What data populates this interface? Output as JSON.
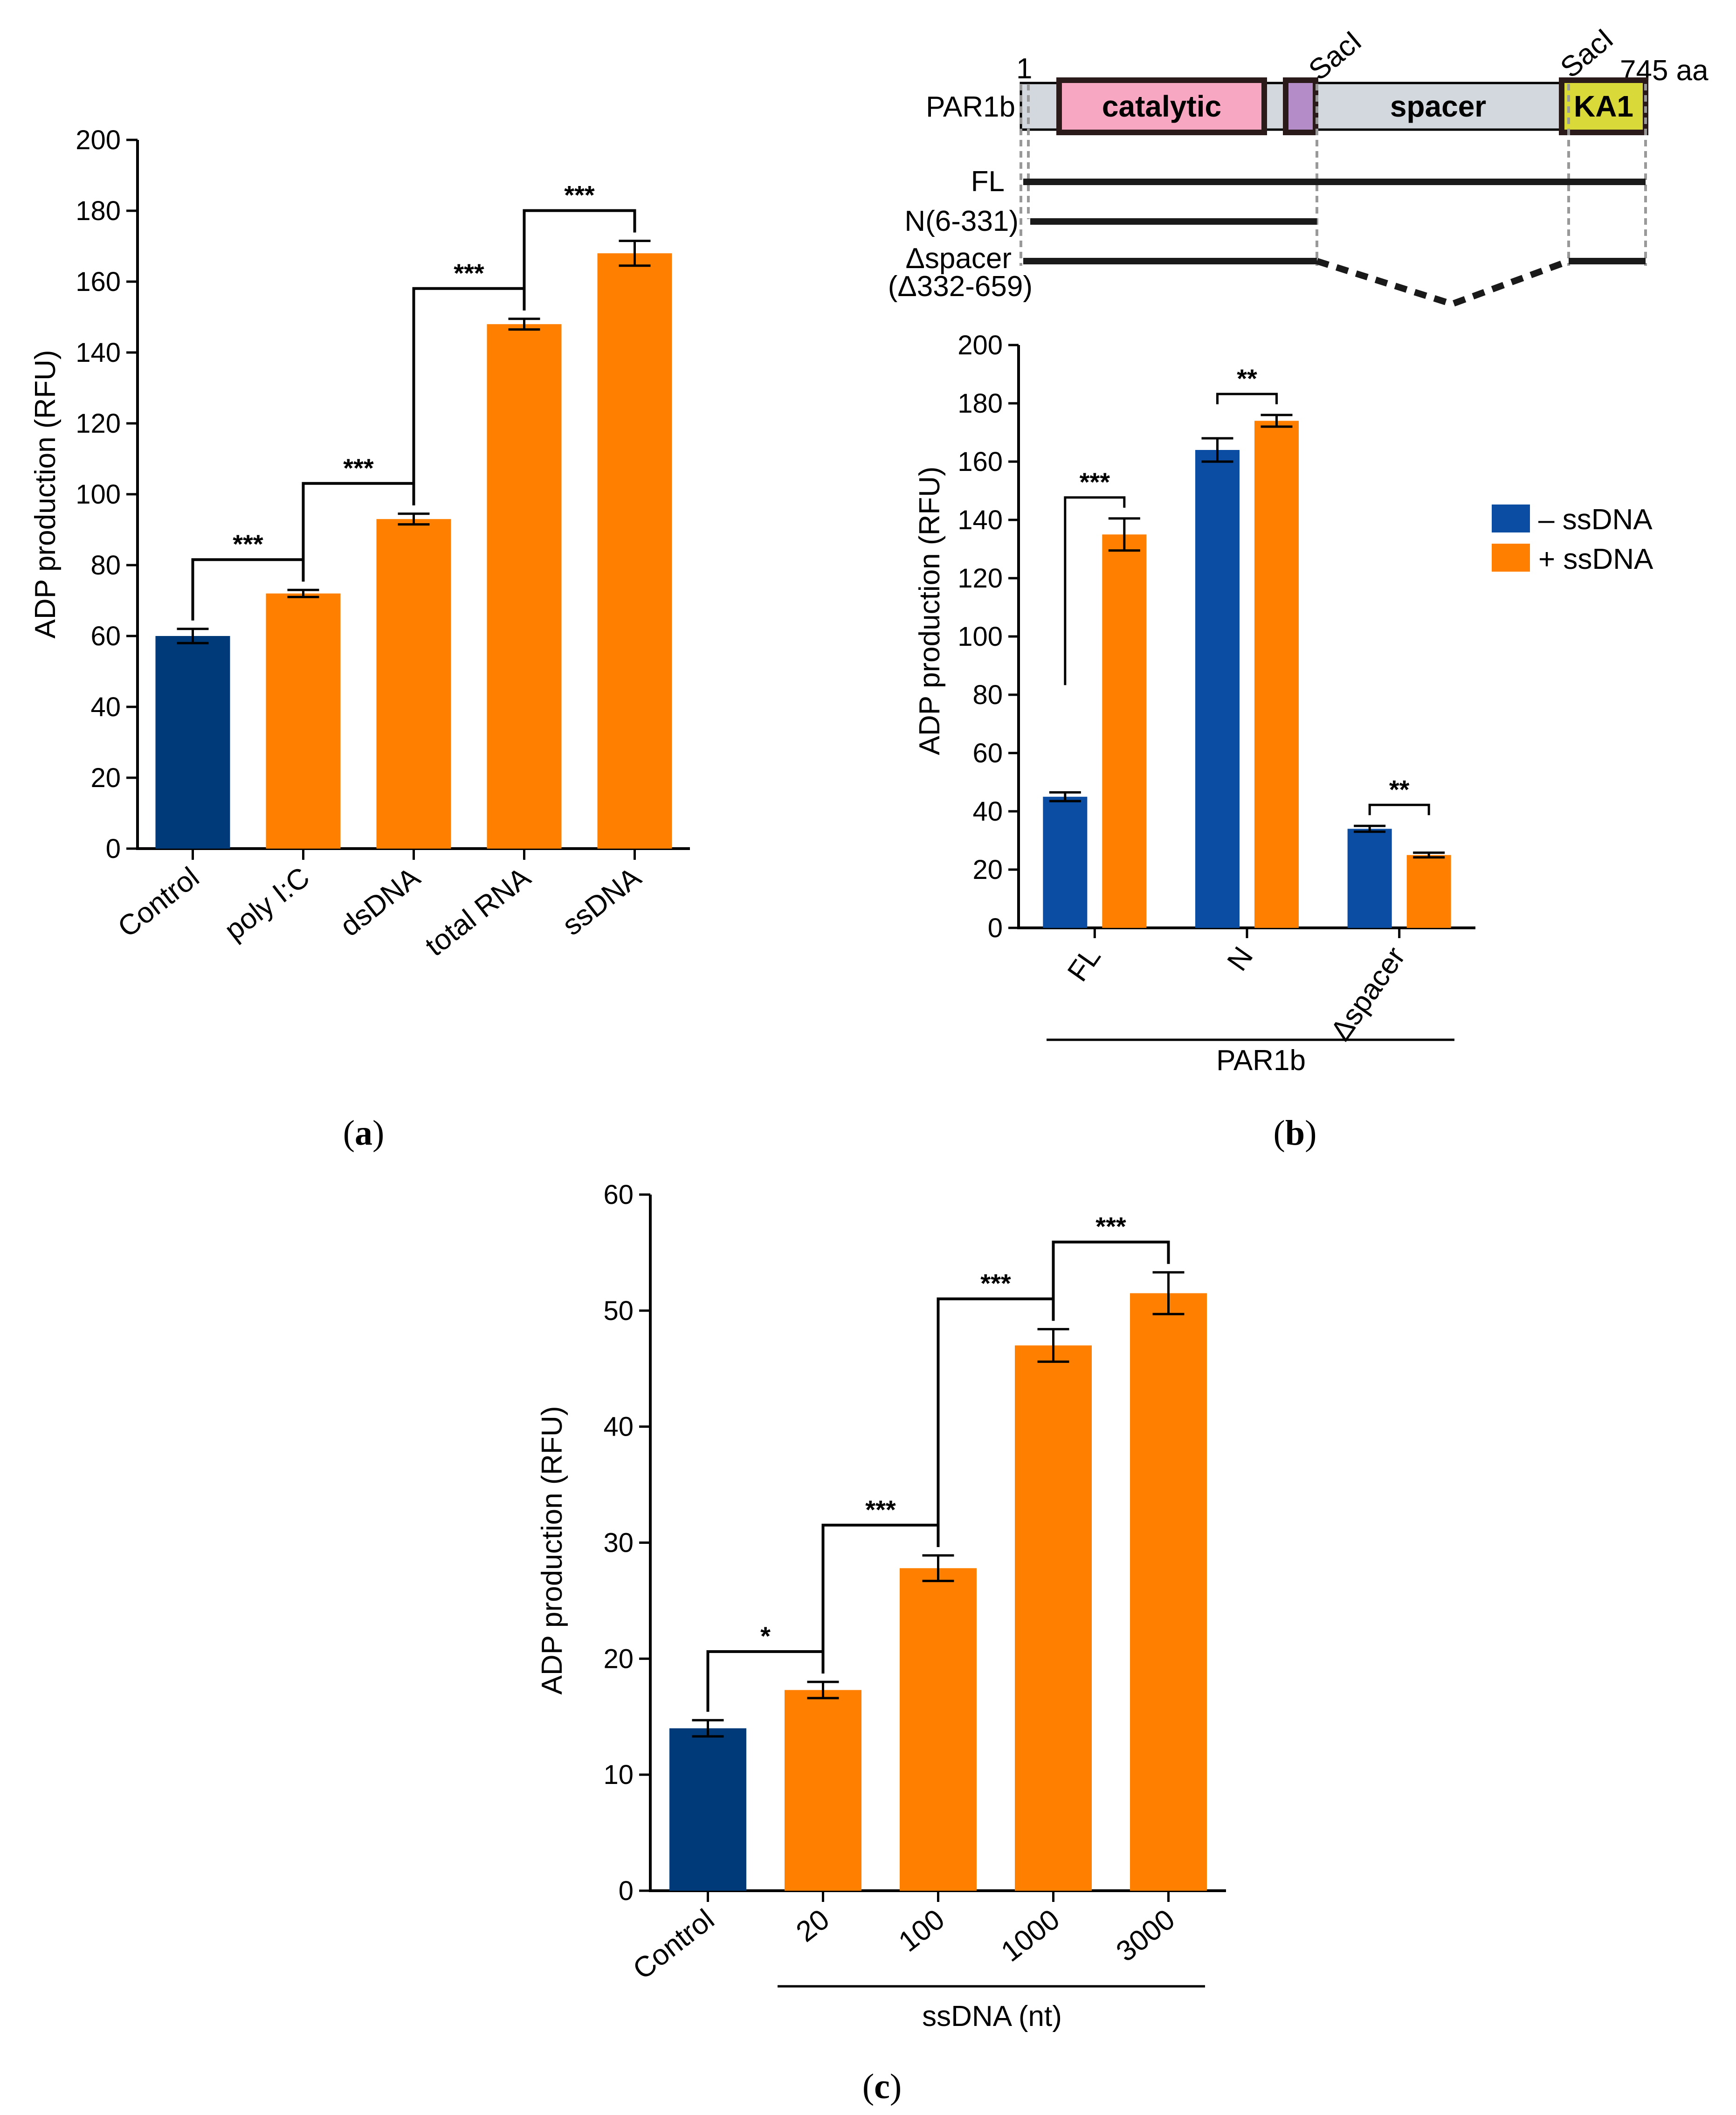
{
  "colors": {
    "control_blue": "#003A78",
    "minus_blue": "#0B4DA2",
    "orange": "#FF8000",
    "catalytic_fill": "#F7A7C2",
    "linker_fill": "#B48CC8",
    "spacer_fill": "#D2D8DE",
    "ka1_fill": "#D9D93A",
    "axis": "#000000",
    "dash": "#999999"
  },
  "panel_labels": {
    "a": {
      "open": "(",
      "letter": "a",
      "close": ")"
    },
    "b": {
      "open": "(",
      "letter": "b",
      "close": ")"
    },
    "c": {
      "open": "(",
      "letter": "c",
      "close": ")"
    }
  },
  "schematic": {
    "protein_name": "PAR1b",
    "start_residue": "1",
    "end_residue": "745 aa",
    "site_left": "SacI",
    "site_right": "SacI",
    "domains": [
      "catalytic",
      "spacer",
      "KA1"
    ],
    "constructs": [
      {
        "name": "FL",
        "extra": ""
      },
      {
        "name": "N(6-331)",
        "extra": ""
      },
      {
        "name": "Δspacer",
        "extra": "(Δ332-659)"
      }
    ]
  },
  "chart_data": [
    {
      "id": "a",
      "type": "bar",
      "title": "",
      "xlabel": "",
      "ylabel": "ADP production (RFU)",
      "ylim": [
        0,
        200
      ],
      "yticks": [
        0,
        20,
        40,
        60,
        80,
        100,
        120,
        140,
        160,
        180,
        200
      ],
      "categories": [
        "Control",
        "poly I:C",
        "dsDNA",
        "total RNA",
        "ssDNA"
      ],
      "values": [
        60,
        72,
        93,
        148,
        168
      ],
      "errors": [
        2,
        1,
        1.5,
        1.5,
        3.5
      ],
      "bar_colors": [
        "control",
        "orange",
        "orange",
        "orange",
        "orange"
      ],
      "significance": [
        {
          "from": 0,
          "to": 1,
          "label": "***"
        },
        {
          "from": 1,
          "to": 2,
          "label": "***"
        },
        {
          "from": 2,
          "to": 3,
          "label": "***"
        },
        {
          "from": 3,
          "to": 4,
          "label": "***"
        }
      ]
    },
    {
      "id": "b",
      "type": "bar",
      "title": "",
      "xlabel": "PAR1b",
      "ylabel": "ADP production (RFU)",
      "ylim": [
        0,
        200
      ],
      "yticks": [
        0,
        20,
        40,
        60,
        80,
        100,
        120,
        140,
        160,
        180,
        200
      ],
      "categories": [
        "FL",
        "N",
        "Δspacer"
      ],
      "series": [
        {
          "name": "– ssDNA",
          "values": [
            45,
            164,
            34
          ],
          "errors": [
            1.5,
            4,
            1
          ]
        },
        {
          "name": "+ ssDNA",
          "values": [
            135,
            174,
            25
          ],
          "errors": [
            5.5,
            2,
            0.8
          ]
        }
      ],
      "legend_position": "right",
      "significance": [
        {
          "group": 0,
          "label": "***"
        },
        {
          "group": 1,
          "label": "**"
        },
        {
          "group": 2,
          "label": "**"
        }
      ]
    },
    {
      "id": "c",
      "type": "bar",
      "title": "",
      "xlabel": "ssDNA (nt)",
      "ylabel": "ADP production (RFU)",
      "ylim": [
        0,
        60
      ],
      "yticks": [
        0,
        10,
        20,
        30,
        40,
        50,
        60
      ],
      "categories": [
        "Control",
        "20",
        "100",
        "1000",
        "3000"
      ],
      "values": [
        14,
        17.3,
        27.8,
        47,
        51.5
      ],
      "errors": [
        0.7,
        0.7,
        1.1,
        1.4,
        1.8
      ],
      "bar_colors": [
        "control",
        "orange",
        "orange",
        "orange",
        "orange"
      ],
      "significance": [
        {
          "from": 0,
          "to": 1,
          "label": "*"
        },
        {
          "from": 1,
          "to": 2,
          "label": "***"
        },
        {
          "from": 2,
          "to": 3,
          "label": "***"
        },
        {
          "from": 3,
          "to": 4,
          "label": "***"
        }
      ]
    }
  ]
}
